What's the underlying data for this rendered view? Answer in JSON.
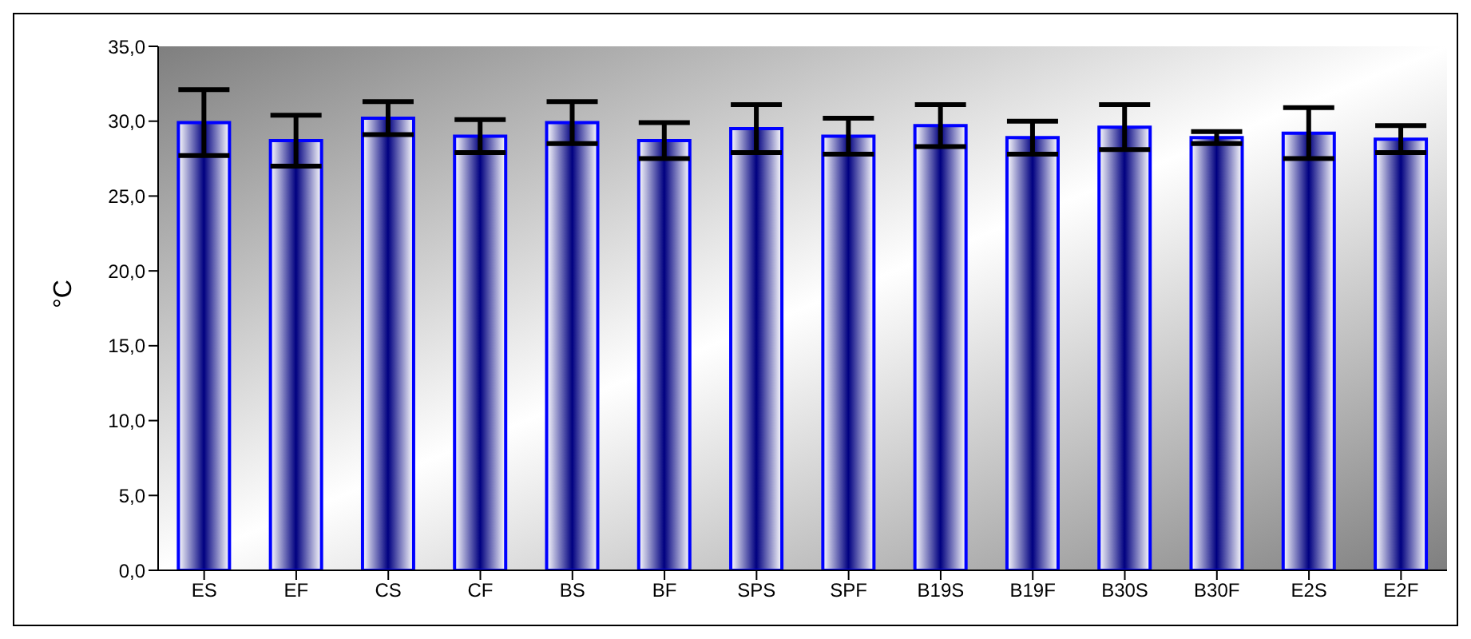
{
  "chart_data": {
    "type": "bar",
    "ylabel": "°C",
    "categories": [
      "ES",
      "EF",
      "CS",
      "CF",
      "BS",
      "BF",
      "SPS",
      "SPF",
      "B19S",
      "B19F",
      "B30S",
      "B30F",
      "E2S",
      "E2F"
    ],
    "values": [
      29.9,
      28.7,
      30.2,
      29.0,
      29.9,
      28.7,
      29.5,
      29.0,
      29.7,
      28.9,
      29.6,
      28.9,
      29.2,
      28.8
    ],
    "errors": [
      2.2,
      1.7,
      1.1,
      1.1,
      1.4,
      1.2,
      1.6,
      1.2,
      1.4,
      1.1,
      1.5,
      0.4,
      1.7,
      0.9
    ],
    "color": "#0000ff",
    "ylim": [
      0,
      35
    ],
    "yticks": [
      {
        "value": 0,
        "label": "0,0"
      },
      {
        "value": 5,
        "label": "5,0"
      },
      {
        "value": 10,
        "label": "10,0"
      },
      {
        "value": 15,
        "label": "15,0"
      },
      {
        "value": 20,
        "label": "20,0"
      },
      {
        "value": 25,
        "label": "25,0"
      },
      {
        "value": 30,
        "label": "30,0"
      },
      {
        "value": 35,
        "label": "35,0"
      }
    ],
    "grid": false,
    "legend": false
  }
}
